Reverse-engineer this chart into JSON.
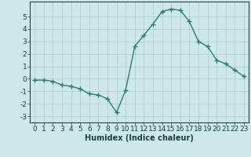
{
  "x": [
    0,
    1,
    2,
    3,
    4,
    5,
    6,
    7,
    8,
    9,
    10,
    11,
    12,
    13,
    14,
    15,
    16,
    17,
    18,
    19,
    20,
    21,
    22,
    23
  ],
  "y": [
    -0.1,
    -0.1,
    -0.2,
    -0.5,
    -0.6,
    -0.8,
    -1.2,
    -1.3,
    -1.6,
    -2.7,
    -0.9,
    2.6,
    3.5,
    4.4,
    5.4,
    5.6,
    5.5,
    4.6,
    3.0,
    2.6,
    1.5,
    1.2,
    0.7,
    0.2
  ],
  "line_color": "#2e7d6e",
  "marker": "+",
  "markersize": 4,
  "linewidth": 1.0,
  "bg_color": "#cce8e8",
  "grid_color": "#b0c8c8",
  "xlabel": "Humidex (Indice chaleur)",
  "xlim": [
    -0.5,
    23.5
  ],
  "ylim": [
    -3.5,
    6.2
  ],
  "yticks": [
    -3,
    -2,
    -1,
    0,
    1,
    2,
    3,
    4,
    5
  ],
  "xticks": [
    0,
    1,
    2,
    3,
    4,
    5,
    6,
    7,
    8,
    9,
    10,
    11,
    12,
    13,
    14,
    15,
    16,
    17,
    18,
    19,
    20,
    21,
    22,
    23
  ],
  "tick_color": "#1a4040",
  "xlabel_fontsize": 7,
  "tick_fontsize": 6.5,
  "axis_color": "#2e4040"
}
